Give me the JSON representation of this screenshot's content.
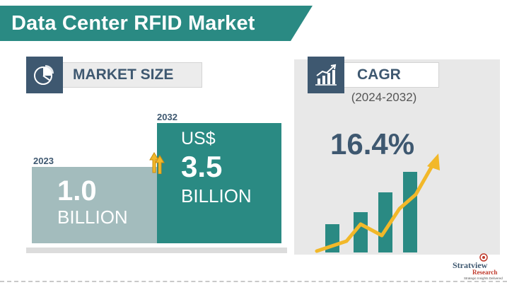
{
  "title": "Data Center RFID Market",
  "market_size": {
    "label": "MARKET SIZE",
    "icon": "pie-chart-icon",
    "bars": [
      {
        "year": "2023",
        "value": "1.0",
        "unit": "BILLION"
      },
      {
        "year": "2032",
        "currency": "US$",
        "value": "3.5",
        "unit": "BILLION"
      }
    ]
  },
  "cagr": {
    "label": "CAGR",
    "icon": "growth-chart-icon",
    "period": "(2024-2032)",
    "value": "16.4%"
  },
  "logo": {
    "name": "Stratview",
    "sub": "Research",
    "tagline": "Strategic Insights Delivered"
  },
  "colors": {
    "teal": "#2a8a83",
    "light_teal": "#a3bcbd",
    "navy": "#3e5870",
    "arrow_yellow": "#f2b829",
    "panel_gray": "#e8e8e8"
  }
}
